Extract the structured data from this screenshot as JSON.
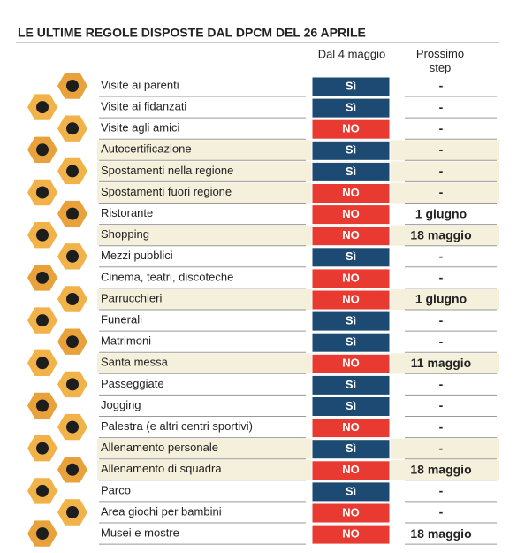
{
  "header": {
    "title": "LE ULTIME REGOLE DISPOSTE DAL DPCM DEL 26 APRILE"
  },
  "table": {
    "columns": [
      "Dal 4 maggio",
      "Prossimo step"
    ],
    "rows": [
      {
        "activity": "Visite ai parenti",
        "status": "Sì",
        "next": "-",
        "color": "#1c4a72",
        "shaded": false
      },
      {
        "activity": "Visite ai fidanzati",
        "status": "Sì",
        "next": "-",
        "color": "#1c4a72",
        "shaded": false
      },
      {
        "activity": "Visite agli amici",
        "status": "NO",
        "next": "-",
        "color": "#e83a30",
        "shaded": false
      },
      {
        "activity": "Autocertificazione",
        "status": "Sì",
        "next": "-",
        "color": "#1c4a72",
        "shaded": true
      },
      {
        "activity": "Spostamenti nella regione",
        "status": "Sì",
        "next": "-",
        "color": "#1c4a72",
        "shaded": true
      },
      {
        "activity": "Spostamenti fuori regione",
        "status": "NO",
        "next": "-",
        "color": "#e83a30",
        "shaded": true
      },
      {
        "activity": "Ristorante",
        "status": "NO",
        "next": "1 giugno",
        "color": "#e83a30",
        "shaded": false
      },
      {
        "activity": "Shopping",
        "status": "NO",
        "next": "18 maggio",
        "color": "#e83a30",
        "shaded": true
      },
      {
        "activity": "Mezzi pubblici",
        "status": "Sì",
        "next": "-",
        "color": "#1c4a72",
        "shaded": false
      },
      {
        "activity": "Cinema, teatri, discoteche",
        "status": "NO",
        "next": "-",
        "color": "#e83a30",
        "shaded": false
      },
      {
        "activity": "Parrucchieri",
        "status": "NO",
        "next": "1 giugno",
        "color": "#e83a30",
        "shaded": true
      },
      {
        "activity": "Funerali",
        "status": "Sì",
        "next": "-",
        "color": "#1c4a72",
        "shaded": false
      },
      {
        "activity": "Matrimoni",
        "status": "Sì",
        "next": "-",
        "color": "#1c4a72",
        "shaded": false
      },
      {
        "activity": "Santa messa",
        "status": "NO",
        "next": "11 maggio",
        "color": "#e83a30",
        "shaded": true
      },
      {
        "activity": "Passeggiate",
        "status": "Sì",
        "next": "-",
        "color": "#1c4a72",
        "shaded": false
      },
      {
        "activity": "Jogging",
        "status": "Sì",
        "next": "-",
        "color": "#1c4a72",
        "shaded": false
      },
      {
        "activity": "Palestra (e altri centri sportivi)",
        "status": "NO",
        "next": "-",
        "color": "#e83a30",
        "shaded": false
      },
      {
        "activity": "Allenamento personale",
        "status": "Sì",
        "next": "-",
        "color": "#1c4a72",
        "shaded": true
      },
      {
        "activity": "Allenamento di squadra",
        "status": "NO",
        "next": "18 maggio",
        "color": "#e83a30",
        "shaded": true
      },
      {
        "activity": "Parco",
        "status": "Sì",
        "next": "-",
        "color": "#1c4a72",
        "shaded": false
      },
      {
        "activity": "Area giochi per bambini",
        "status": "NO",
        "next": "-",
        "color": "#e83a30",
        "shaded": false
      },
      {
        "activity": "Musei e mostre",
        "status": "NO",
        "next": "18 maggio",
        "color": "#e83a30",
        "shaded": false
      }
    ]
  }
}
